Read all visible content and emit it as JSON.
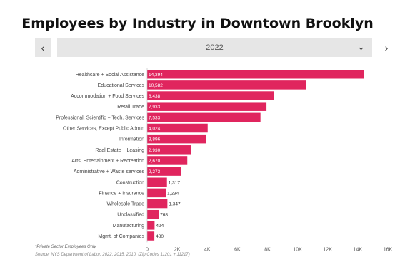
{
  "title": "Employees by Industry in Downtown Brooklyn",
  "selector": {
    "value": "2022",
    "prev_label": "‹",
    "next_label": "›",
    "caret": "⌄"
  },
  "footnote": "*Private Sector Employees Only",
  "source": "Source: NYS Department of Labor, 2022, 2015, 2010. (Zip Codes 11201 + 11217)",
  "colors": {
    "bar": "#e0255e",
    "label": "#ffffff",
    "axis": "#555555"
  },
  "chart_data": {
    "type": "bar",
    "orientation": "horizontal",
    "title": "Employees by Industry in Downtown Brooklyn",
    "categories": [
      "Healthcare + Social Assistance",
      "Educational Services",
      "Accommodation + Food Services",
      "Retail Trade",
      "Professional, Scientific + Tech. Services",
      "Other Services, Except Public Admin",
      "Information",
      "Real Estate + Leasing",
      "Arts, Entertainment + Recreation",
      "Administrative + Waste services",
      "Construction",
      "Finance + Insurance",
      "Wholesale Trade",
      "Unclassified",
      "Manufacturing",
      "Mgmt. of Companies"
    ],
    "values": [
      14394,
      10582,
      8438,
      7933,
      7533,
      4024,
      3896,
      2930,
      2670,
      2273,
      1317,
      1234,
      1347,
      768,
      494,
      480
    ],
    "value_labels": [
      "14,394",
      "10,582",
      "8,438",
      "7,933",
      "7,533",
      "4,024",
      "3,896",
      "2,930",
      "2,670",
      "2,273",
      "1,317",
      "1,234",
      "1,347",
      "768",
      "494",
      "480"
    ],
    "xlim": [
      0,
      16000
    ],
    "xticks": [
      0,
      2000,
      4000,
      6000,
      8000,
      10000,
      12000,
      14000,
      16000
    ],
    "xtick_labels": [
      "0",
      "2K",
      "4K",
      "6K",
      "8K",
      "10K",
      "12K",
      "14K",
      "16K"
    ],
    "grid": false
  }
}
